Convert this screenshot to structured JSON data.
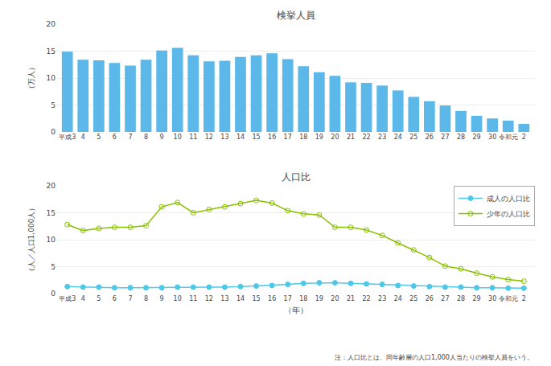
{
  "chart_data": [
    {
      "type": "bar",
      "title": "検挙人員",
      "ylabel": "（万人）",
      "categories": [
        "平成3",
        "4",
        "5",
        "6",
        "7",
        "8",
        "9",
        "10",
        "11",
        "12",
        "13",
        "14",
        "15",
        "16",
        "17",
        "18",
        "19",
        "20",
        "21",
        "22",
        "23",
        "24",
        "25",
        "26",
        "27",
        "28",
        "29",
        "30",
        "令和元",
        "2"
      ],
      "values": [
        14.9,
        13.4,
        13.3,
        12.8,
        12.3,
        13.4,
        15.1,
        15.6,
        14.2,
        13.1,
        13.2,
        13.9,
        14.2,
        14.6,
        13.5,
        12.2,
        11.1,
        10.4,
        9.2,
        9.1,
        8.6,
        7.7,
        6.5,
        5.7,
        4.9,
        3.9,
        3.0,
        2.5,
        2.1,
        1.5
      ],
      "color": "#5BB8E8",
      "ylim": [
        0,
        20
      ],
      "yticks": [
        0,
        5,
        10,
        15,
        20
      ],
      "grid": true
    },
    {
      "type": "line",
      "title": "人口比",
      "ylabel": "（人／人口1,000人）",
      "xlabel": "（年）",
      "annotations": [
        "注：人口比とは、同年齢層の人口1,000人当たりの検挙人員をいう。"
      ],
      "categories": [
        "平成3",
        "4",
        "5",
        "6",
        "7",
        "8",
        "9",
        "10",
        "11",
        "12",
        "13",
        "14",
        "15",
        "16",
        "17",
        "18",
        "19",
        "20",
        "21",
        "22",
        "23",
        "24",
        "25",
        "26",
        "27",
        "28",
        "29",
        "30",
        "令和元",
        "2"
      ],
      "series": [
        {
          "name": "成人の人口比",
          "color": "#4DC8E8",
          "marker": "circle",
          "values": [
            1.3,
            1.2,
            1.2,
            1.1,
            1.1,
            1.1,
            1.1,
            1.2,
            1.2,
            1.2,
            1.2,
            1.3,
            1.4,
            1.5,
            1.7,
            1.9,
            2.0,
            2.0,
            1.9,
            1.8,
            1.7,
            1.5,
            1.4,
            1.3,
            1.2,
            1.2,
            1.1,
            1.1,
            1.0,
            1.0
          ]
        },
        {
          "name": "少年の人口比",
          "color": "#88C000",
          "marker": "circle-open",
          "values": [
            12.8,
            11.7,
            12.1,
            12.3,
            12.3,
            12.6,
            16.1,
            16.9,
            15.0,
            15.6,
            16.1,
            16.7,
            17.3,
            16.8,
            15.4,
            14.8,
            14.6,
            12.3,
            12.3,
            11.8,
            10.8,
            9.4,
            8.1,
            6.7,
            5.1,
            4.6,
            3.8,
            3.1,
            2.6,
            2.3
          ]
        }
      ],
      "ylim": [
        0,
        20
      ],
      "yticks": [
        0,
        5,
        10,
        15,
        20
      ],
      "grid": true,
      "legend": "upper right"
    }
  ]
}
